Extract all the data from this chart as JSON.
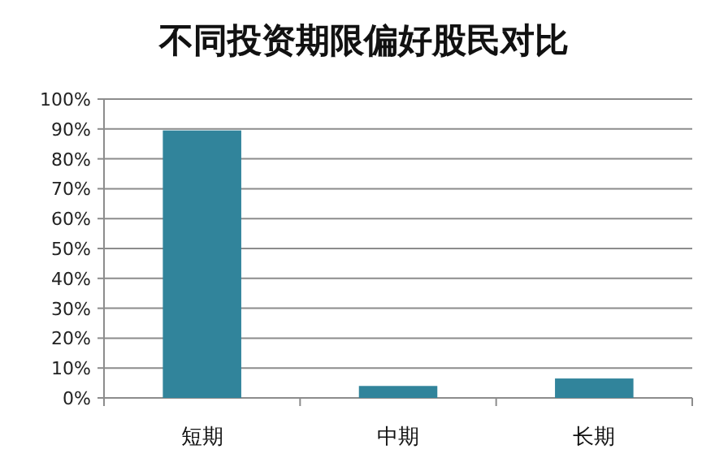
{
  "chart_data": {
    "type": "bar",
    "title": "不同投资期限偏好股民对比",
    "categories": [
      "短期",
      "中期",
      "长期"
    ],
    "values": [
      89.5,
      4,
      6.5
    ],
    "color": "#31849b",
    "ylim": [
      0,
      100
    ],
    "yticks": [
      {
        "value": 0,
        "label": "0%"
      },
      {
        "value": 10,
        "label": "10%"
      },
      {
        "value": 20,
        "label": "20%"
      },
      {
        "value": 30,
        "label": "30%"
      },
      {
        "value": 40,
        "label": "40%"
      },
      {
        "value": 50,
        "label": "50%"
      },
      {
        "value": 60,
        "label": "60%"
      },
      {
        "value": 70,
        "label": "70%"
      },
      {
        "value": 80,
        "label": "80%"
      },
      {
        "value": 90,
        "label": "90%"
      },
      {
        "value": 100,
        "label": "100%"
      }
    ],
    "grid": "y"
  }
}
